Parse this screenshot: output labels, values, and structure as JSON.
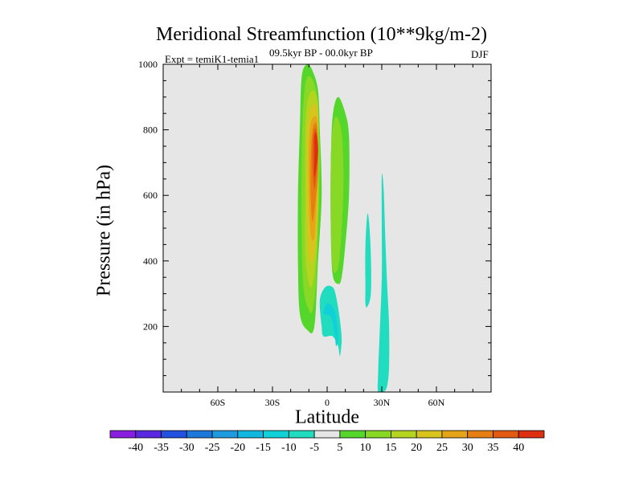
{
  "figure": {
    "title": "Meridional Streamfunction (10**9kg/m-2)",
    "left_label": "Expt = temiK1-temia1",
    "center_label": "09.5kyr BP - 00.0kyr BP",
    "right_label": "DJF"
  },
  "chart_data": {
    "type": "contour",
    "xlabel": "Latitude",
    "ylabel": "Pressure (in hPa)",
    "xlim": [
      -90,
      90
    ],
    "ylim": [
      1000,
      0
    ],
    "x_ticks": [
      {
        "value": -60,
        "label": "60S"
      },
      {
        "value": -30,
        "label": "30S"
      },
      {
        "value": 0,
        "label": "0"
      },
      {
        "value": 30,
        "label": "30N"
      },
      {
        "value": 60,
        "label": "60N"
      }
    ],
    "y_ticks": [
      {
        "value": 200,
        "label": "200"
      },
      {
        "value": 400,
        "label": "400"
      },
      {
        "value": 600,
        "label": "600"
      },
      {
        "value": 800,
        "label": "800"
      },
      {
        "value": 1000,
        "label": "1000"
      }
    ],
    "colorbar": {
      "levels": [
        -40,
        -35,
        -30,
        -25,
        -20,
        -15,
        -10,
        -5,
        5,
        10,
        15,
        20,
        25,
        30,
        35,
        40
      ],
      "labels": [
        "-40",
        "-35",
        "-30",
        "-25",
        "-20",
        "-15",
        "-10",
        "-5",
        "5",
        "10",
        "15",
        "20",
        "25",
        "30",
        "35",
        "40"
      ],
      "colors": [
        "#8a1ee0",
        "#5a28e0",
        "#2250e0",
        "#1e78dc",
        "#1e9ade",
        "#10b8e0",
        "#10d0d8",
        "#22dcc0",
        "#e6e6e6",
        "#55d62b",
        "#88d826",
        "#b4d420",
        "#d8c41c",
        "#e6a418",
        "#e67e14",
        "#e25a12",
        "#dc3010"
      ]
    },
    "background_color": "#e6e6e6",
    "regions": [
      {
        "fill": "#55d62b",
        "points": [
          [
            -11,
            1000
          ],
          [
            -8,
            980
          ],
          [
            -5,
            920
          ],
          [
            -4,
            800
          ],
          [
            -3,
            600
          ],
          [
            -5,
            400
          ],
          [
            -7,
            200
          ],
          [
            -11,
            190
          ],
          [
            -15,
            240
          ],
          [
            -16,
            400
          ],
          [
            -16,
            600
          ],
          [
            -15,
            800
          ],
          [
            -14,
            960
          ]
        ]
      },
      {
        "fill": "#88d826",
        "points": [
          [
            -11,
            960
          ],
          [
            -7,
            940
          ],
          [
            -5,
            860
          ],
          [
            -4,
            700
          ],
          [
            -5,
            500
          ],
          [
            -6,
            340
          ],
          [
            -8,
            250
          ],
          [
            -10,
            250
          ],
          [
            -13,
            320
          ],
          [
            -14,
            500
          ],
          [
            -14,
            700
          ],
          [
            -13,
            880
          ]
        ]
      },
      {
        "fill": "#b4d420",
        "points": [
          [
            -8,
            920
          ],
          [
            -5,
            880
          ],
          [
            -5,
            720
          ],
          [
            -5,
            560
          ],
          [
            -6,
            420
          ],
          [
            -8,
            330
          ],
          [
            -10,
            330
          ],
          [
            -12,
            420
          ],
          [
            -12,
            600
          ],
          [
            -12,
            780
          ],
          [
            -11,
            880
          ]
        ]
      },
      {
        "fill": "#d8c41c",
        "points": [
          [
            -7,
            880
          ],
          [
            -5,
            840
          ],
          [
            -5,
            700
          ],
          [
            -5,
            560
          ],
          [
            -6,
            460
          ],
          [
            -8,
            400
          ],
          [
            -10,
            420
          ],
          [
            -11,
            560
          ],
          [
            -11,
            720
          ],
          [
            -10,
            840
          ]
        ]
      },
      {
        "fill": "#e6a418",
        "points": [
          [
            -6,
            840
          ],
          [
            -5,
            780
          ],
          [
            -5,
            680
          ],
          [
            -6,
            560
          ],
          [
            -7,
            470
          ],
          [
            -9,
            480
          ],
          [
            -10,
            600
          ],
          [
            -10,
            740
          ],
          [
            -9,
            820
          ]
        ]
      },
      {
        "fill": "#e67e14",
        "points": [
          [
            -6,
            820
          ],
          [
            -5,
            760
          ],
          [
            -5,
            670
          ],
          [
            -6,
            600
          ],
          [
            -8,
            520
          ],
          [
            -9,
            600
          ],
          [
            -9,
            720
          ],
          [
            -8,
            800
          ]
        ]
      },
      {
        "fill": "#e25a12",
        "points": [
          [
            -6,
            800
          ],
          [
            -5,
            740
          ],
          [
            -6,
            660
          ],
          [
            -7,
            620
          ],
          [
            -8,
            680
          ],
          [
            -8,
            760
          ],
          [
            -7,
            800
          ]
        ]
      },
      {
        "fill": "#dc3010",
        "points": [
          [
            -6,
            790
          ],
          [
            -5,
            740
          ],
          [
            -6,
            680
          ],
          [
            -7,
            660
          ],
          [
            -7,
            740
          ],
          [
            -7,
            780
          ]
        ]
      },
      {
        "fill": "#55d62b",
        "points": [
          [
            6,
            900
          ],
          [
            10,
            850
          ],
          [
            12,
            780
          ],
          [
            12,
            600
          ],
          [
            10,
            450
          ],
          [
            8,
            350
          ],
          [
            6,
            330
          ],
          [
            3,
            360
          ],
          [
            2,
            500
          ],
          [
            2,
            680
          ],
          [
            3,
            840
          ]
        ]
      },
      {
        "fill": "#88d826",
        "points": [
          [
            5,
            840
          ],
          [
            8,
            790
          ],
          [
            9,
            650
          ],
          [
            8,
            500
          ],
          [
            6,
            380
          ],
          [
            3,
            380
          ],
          [
            2,
            520
          ],
          [
            2,
            700
          ],
          [
            3,
            800
          ]
        ]
      },
      {
        "fill": "#22dcc0",
        "points": [
          [
            3,
            170
          ],
          [
            6,
            140
          ],
          [
            7,
            110
          ],
          [
            8,
            160
          ],
          [
            7,
            220
          ],
          [
            5,
            290
          ],
          [
            3,
            320
          ],
          [
            -1,
            320
          ],
          [
            -4,
            280
          ],
          [
            -3,
            200
          ],
          [
            -2,
            170
          ]
        ]
      },
      {
        "fill": "#10d0d8",
        "points": [
          [
            2,
            230
          ],
          [
            4,
            180
          ],
          [
            5,
            140
          ],
          [
            6,
            170
          ],
          [
            5,
            230
          ],
          [
            3,
            260
          ],
          [
            0,
            270
          ],
          [
            -2,
            240
          ]
        ]
      },
      {
        "fill": "#22dcc0",
        "points": [
          [
            31,
            0
          ],
          [
            33,
            20
          ],
          [
            34,
            80
          ],
          [
            34,
            200
          ],
          [
            33,
            320
          ],
          [
            32,
            460
          ],
          [
            31,
            620
          ],
          [
            30,
            660
          ],
          [
            30,
            500
          ],
          [
            30,
            350
          ],
          [
            29,
            200
          ],
          [
            28,
            60
          ],
          [
            28,
            0
          ]
        ]
      },
      {
        "fill": "#22dcc0",
        "points": [
          [
            22,
            260
          ],
          [
            24,
            300
          ],
          [
            24,
            420
          ],
          [
            23,
            520
          ],
          [
            22,
            540
          ],
          [
            21,
            440
          ],
          [
            21,
            320
          ],
          [
            21,
            270
          ]
        ]
      }
    ]
  }
}
